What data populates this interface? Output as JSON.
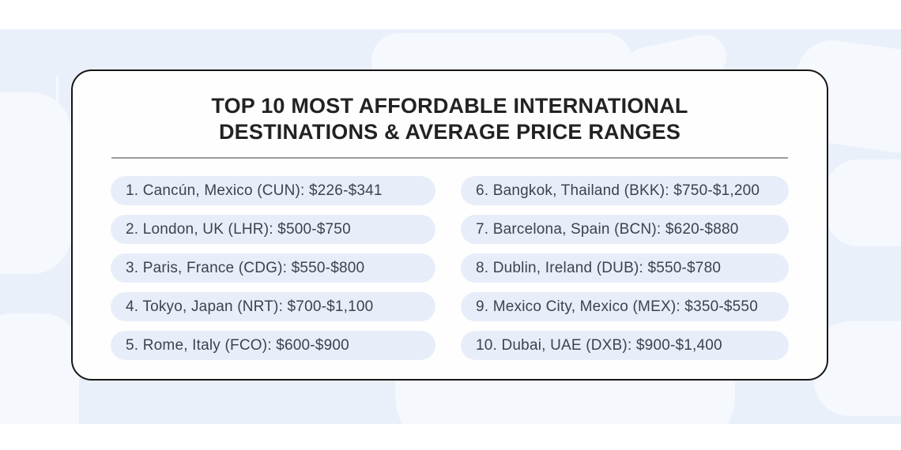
{
  "infographic": {
    "title_line1": "TOP 10 MOST AFFORDABLE INTERNATIONAL",
    "title_line2": "DESTINATIONS & AVERAGE PRICE RANGES",
    "items": [
      {
        "rank": 1,
        "city": "Cancún",
        "country": "Mexico",
        "airport_code": "CUN",
        "price_range": "$226-$341",
        "text": "1. Cancún, Mexico (CUN): $226-$341"
      },
      {
        "rank": 2,
        "city": "London",
        "country": "UK",
        "airport_code": "LHR",
        "price_range": "$500-$750",
        "text": "2. London, UK (LHR): $500-$750"
      },
      {
        "rank": 3,
        "city": "Paris",
        "country": "France",
        "airport_code": "CDG",
        "price_range": "$550-$800",
        "text": "3. Paris, France (CDG): $550-$800"
      },
      {
        "rank": 4,
        "city": "Tokyo",
        "country": "Japan",
        "airport_code": "NRT",
        "price_range": "$700-$1,100",
        "text": "4. Tokyo, Japan (NRT): $700-$1,100"
      },
      {
        "rank": 5,
        "city": "Rome",
        "country": "Italy",
        "airport_code": "FCO",
        "price_range": "$600-$900",
        "text": "5. Rome, Italy (FCO): $600-$900"
      },
      {
        "rank": 6,
        "city": "Bangkok",
        "country": "Thailand",
        "airport_code": "BKK",
        "price_range": "$750-$1,200",
        "text": "6. Bangkok, Thailand (BKK): $750-$1,200"
      },
      {
        "rank": 7,
        "city": "Barcelona",
        "country": "Spain",
        "airport_code": "BCN",
        "price_range": "$620-$880",
        "text": "7. Barcelona, Spain (BCN): $620-$880"
      },
      {
        "rank": 8,
        "city": "Dublin",
        "country": "Ireland",
        "airport_code": "DUB",
        "price_range": "$550-$780",
        "text": "8. Dublin, Ireland (DUB): $550-$780"
      },
      {
        "rank": 9,
        "city": "Mexico City",
        "country": "Mexico",
        "airport_code": "MEX",
        "price_range": "$350-$550",
        "text": "9. Mexico City, Mexico (MEX): $350-$550"
      },
      {
        "rank": 10,
        "city": "Dubai",
        "country": "UAE",
        "airport_code": "DXB",
        "price_range": "$900-$1,400",
        "text": "10. Dubai, UAE (DXB): $900-$1,400"
      }
    ],
    "colors": {
      "band_background": "#eaf0fa",
      "map_shape": "#f5f8fd",
      "card_background": "#fefefe",
      "card_border": "#161616",
      "title_text": "#222222",
      "divider": "#9b9b9b",
      "pill_background": "#e8eef9",
      "pill_text": "#3d434e"
    }
  }
}
